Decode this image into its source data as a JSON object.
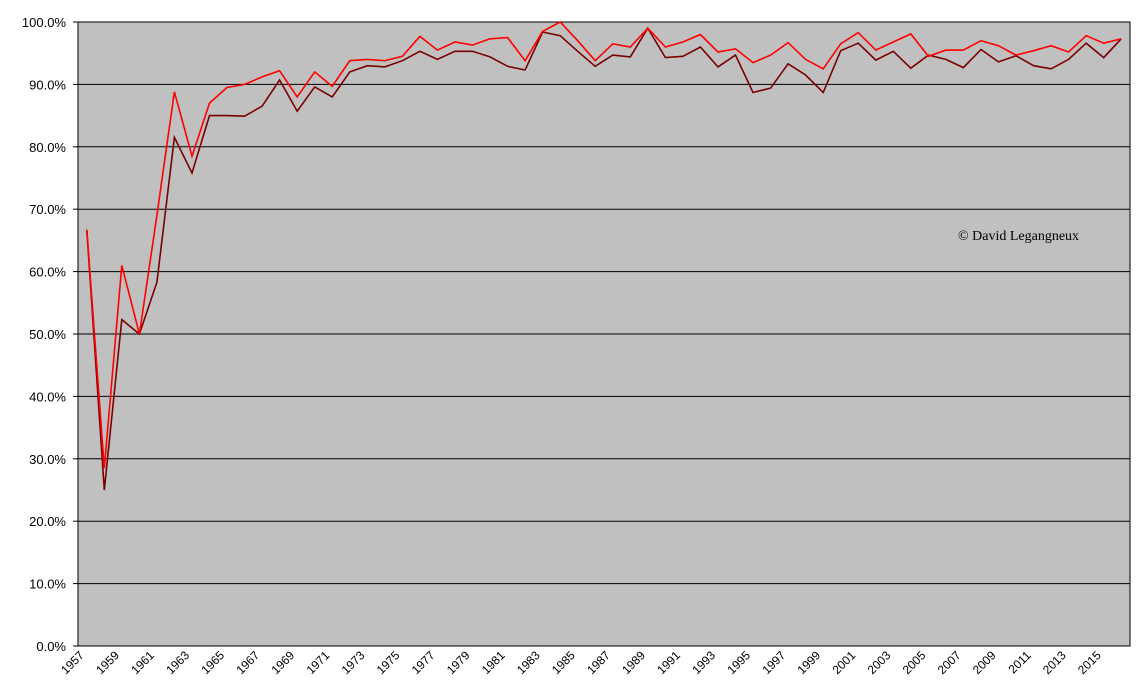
{
  "chart_data": {
    "type": "line",
    "annotation": "© David Legangneux",
    "categories": [
      "1957",
      null,
      "1959",
      null,
      "1961",
      null,
      "1963",
      null,
      "1965",
      null,
      "1967",
      null,
      "1969",
      null,
      "1971",
      null,
      "1973",
      null,
      "1975",
      null,
      "1977",
      null,
      "1979",
      null,
      "1981",
      null,
      "1983",
      null,
      "1985",
      null,
      "1987",
      null,
      "1989",
      null,
      "1991",
      null,
      "1993",
      null,
      "1995",
      null,
      "1997",
      null,
      "1999",
      null,
      "2001",
      null,
      "2003",
      null,
      "2005",
      null,
      "2007",
      null,
      "2009",
      null,
      "2011",
      null,
      "2013",
      null,
      "2015",
      null
    ],
    "series": [
      {
        "color": "#7a0000",
        "values": [
          66.7,
          25,
          52.3,
          50,
          58.3,
          81.5,
          75.8,
          85,
          85,
          84.9,
          86.5,
          90.7,
          85.7,
          89.6,
          88,
          92,
          93,
          92.8,
          93.8,
          95.3,
          94,
          95.3,
          95.3,
          94.4,
          92.9,
          92.3,
          98.4,
          97.8,
          95.3,
          92.9,
          94.7,
          94.4,
          99,
          94.3,
          94.5,
          96,
          92.8,
          94.7,
          88.7,
          89.4,
          93.3,
          91.5,
          88.7,
          95.4,
          96.6,
          93.9,
          95.3,
          92.6,
          94.7,
          94,
          92.7,
          95.6,
          93.6,
          94.6,
          93,
          92.5,
          94,
          96.6,
          94.3,
          97.3
        ]
      },
      {
        "color": "#ff0000",
        "values": [
          66.7,
          28.5,
          61,
          50,
          69,
          88.8,
          78.5,
          87,
          89.5,
          90,
          91.2,
          92.2,
          88,
          92,
          89.7,
          93.8,
          94,
          93.8,
          94.5,
          97.7,
          95.5,
          96.8,
          96.3,
          97.3,
          97.5,
          93.8,
          98.5,
          100,
          97,
          93.8,
          96.5,
          96,
          99,
          96,
          96.8,
          98,
          95.2,
          95.7,
          93.5,
          94.7,
          96.7,
          94,
          92.5,
          96.5,
          98.3,
          95.5,
          96.8,
          98.1,
          94.5,
          95.5,
          95.5,
          97,
          96.2,
          94.7,
          95.4,
          96.2,
          95.2,
          97.8,
          96.6,
          97.3
        ]
      }
    ],
    "ylim": [
      0,
      100
    ],
    "yticks": [
      {
        "value": 0,
        "label": "0.0%"
      },
      {
        "value": 10,
        "label": "10.0%"
      },
      {
        "value": 20,
        "label": "20.0%"
      },
      {
        "value": 30,
        "label": "30.0%"
      },
      {
        "value": 40,
        "label": "40.0%"
      },
      {
        "value": 50,
        "label": "50.0%"
      },
      {
        "value": 60,
        "label": "60.0%"
      },
      {
        "value": 70,
        "label": "70.0%"
      },
      {
        "value": 80,
        "label": "80.0%"
      },
      {
        "value": 90,
        "label": "90.0%"
      },
      {
        "value": 100,
        "label": "100.0%"
      }
    ],
    "grid": true,
    "background": "#c0c0c0"
  }
}
